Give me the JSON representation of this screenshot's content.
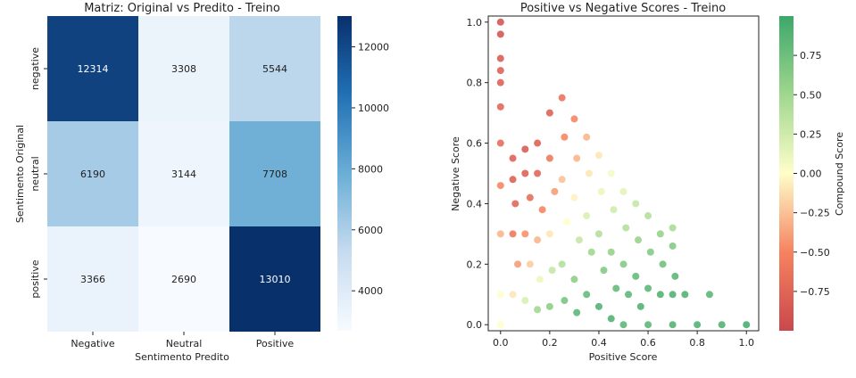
{
  "chart_data": [
    {
      "type": "heatmap",
      "title": "Matriz: Original vs Predito - Treino",
      "xlabel": "Sentimento Predito",
      "ylabel": "Sentimento Original",
      "x_categories": [
        "Negative",
        "Neutral",
        "Positive"
      ],
      "y_categories": [
        "negative",
        "neutral",
        "positive"
      ],
      "values": [
        [
          12314,
          3308,
          5544
        ],
        [
          6190,
          3144,
          7708
        ],
        [
          3366,
          2690,
          13010
        ]
      ],
      "colormap": "Blues",
      "colorbar_range": [
        2690,
        13010
      ],
      "colorbar_ticks": [
        "4000",
        "6000",
        "8000",
        "10000",
        "12000"
      ]
    },
    {
      "type": "scatter",
      "title": "Positive vs Negative Scores - Treino",
      "xlabel": "Positive Score",
      "ylabel": "Negative Score",
      "xlim": [
        -0.05,
        1.05
      ],
      "ylim": [
        -0.02,
        1.02
      ],
      "x_ticks": [
        "0.0",
        "0.2",
        "0.4",
        "0.6",
        "0.8",
        "1.0"
      ],
      "y_ticks": [
        "0.0",
        "0.2",
        "0.4",
        "0.6",
        "0.8",
        "1.0"
      ],
      "colormap": "RdYlGn",
      "colorbar_label": "Compound Score",
      "colorbar_range": [
        -1,
        1
      ],
      "colorbar_ticks": [
        "0.75",
        "0.50",
        "0.25",
        "0.00",
        "−0.25",
        "−0.50",
        "−0.75"
      ],
      "points": [
        [
          0.0,
          1.0,
          -0.9
        ],
        [
          0.0,
          0.96,
          -0.9
        ],
        [
          0.0,
          0.88,
          -0.85
        ],
        [
          0.0,
          0.84,
          -0.8
        ],
        [
          0.0,
          0.8,
          -0.8
        ],
        [
          0.0,
          0.72,
          -0.75
        ],
        [
          0.0,
          0.6,
          -0.7
        ],
        [
          0.0,
          0.46,
          -0.5
        ],
        [
          0.0,
          0.3,
          -0.3
        ],
        [
          0.0,
          0.1,
          0.0
        ],
        [
          0.0,
          0.0,
          0.0
        ],
        [
          0.05,
          0.55,
          -0.8
        ],
        [
          0.05,
          0.48,
          -0.8
        ],
        [
          0.06,
          0.4,
          -0.75
        ],
        [
          0.05,
          0.3,
          -0.6
        ],
        [
          0.07,
          0.2,
          -0.4
        ],
        [
          0.05,
          0.1,
          -0.1
        ],
        [
          0.1,
          0.58,
          -0.85
        ],
        [
          0.1,
          0.5,
          -0.8
        ],
        [
          0.12,
          0.42,
          -0.7
        ],
        [
          0.1,
          0.3,
          -0.45
        ],
        [
          0.12,
          0.2,
          -0.2
        ],
        [
          0.1,
          0.08,
          0.2
        ],
        [
          0.15,
          0.6,
          -0.8
        ],
        [
          0.15,
          0.5,
          -0.75
        ],
        [
          0.17,
          0.38,
          -0.5
        ],
        [
          0.15,
          0.28,
          -0.3
        ],
        [
          0.16,
          0.15,
          0.1
        ],
        [
          0.15,
          0.05,
          0.5
        ],
        [
          0.2,
          0.7,
          -0.8
        ],
        [
          0.2,
          0.55,
          -0.6
        ],
        [
          0.22,
          0.44,
          -0.4
        ],
        [
          0.2,
          0.3,
          -0.1
        ],
        [
          0.21,
          0.18,
          0.3
        ],
        [
          0.2,
          0.06,
          0.6
        ],
        [
          0.25,
          0.75,
          -0.65
        ],
        [
          0.26,
          0.62,
          -0.5
        ],
        [
          0.25,
          0.48,
          -0.25
        ],
        [
          0.27,
          0.34,
          0.0
        ],
        [
          0.25,
          0.2,
          0.4
        ],
        [
          0.26,
          0.08,
          0.7
        ],
        [
          0.3,
          0.68,
          -0.5
        ],
        [
          0.31,
          0.55,
          -0.3
        ],
        [
          0.3,
          0.42,
          -0.05
        ],
        [
          0.32,
          0.28,
          0.3
        ],
        [
          0.3,
          0.15,
          0.6
        ],
        [
          0.31,
          0.04,
          0.85
        ],
        [
          0.35,
          0.62,
          -0.3
        ],
        [
          0.36,
          0.5,
          -0.1
        ],
        [
          0.35,
          0.36,
          0.2
        ],
        [
          0.37,
          0.24,
          0.5
        ],
        [
          0.35,
          0.1,
          0.8
        ],
        [
          0.4,
          0.56,
          -0.1
        ],
        [
          0.41,
          0.44,
          0.1
        ],
        [
          0.4,
          0.3,
          0.4
        ],
        [
          0.42,
          0.18,
          0.65
        ],
        [
          0.4,
          0.06,
          0.9
        ],
        [
          0.45,
          0.5,
          0.05
        ],
        [
          0.46,
          0.38,
          0.25
        ],
        [
          0.45,
          0.24,
          0.55
        ],
        [
          0.47,
          0.12,
          0.8
        ],
        [
          0.45,
          0.02,
          0.9
        ],
        [
          0.5,
          0.44,
          0.15
        ],
        [
          0.51,
          0.32,
          0.4
        ],
        [
          0.5,
          0.2,
          0.65
        ],
        [
          0.52,
          0.1,
          0.85
        ],
        [
          0.55,
          0.4,
          0.3
        ],
        [
          0.56,
          0.28,
          0.55
        ],
        [
          0.55,
          0.16,
          0.8
        ],
        [
          0.57,
          0.06,
          0.9
        ],
        [
          0.6,
          0.36,
          0.4
        ],
        [
          0.61,
          0.24,
          0.65
        ],
        [
          0.6,
          0.12,
          0.85
        ],
        [
          0.65,
          0.3,
          0.55
        ],
        [
          0.66,
          0.2,
          0.75
        ],
        [
          0.65,
          0.1,
          0.9
        ],
        [
          0.7,
          0.32,
          0.45
        ],
        [
          0.7,
          0.26,
          0.65
        ],
        [
          0.71,
          0.16,
          0.85
        ],
        [
          0.7,
          0.1,
          0.9
        ],
        [
          0.75,
          0.1,
          0.9
        ],
        [
          0.85,
          0.1,
          0.85
        ],
        [
          0.5,
          0.0,
          0.85
        ],
        [
          0.6,
          0.0,
          0.85
        ],
        [
          0.7,
          0.0,
          0.9
        ],
        [
          0.8,
          0.0,
          0.9
        ],
        [
          0.9,
          0.0,
          0.9
        ],
        [
          1.0,
          0.0,
          0.95
        ]
      ]
    }
  ]
}
